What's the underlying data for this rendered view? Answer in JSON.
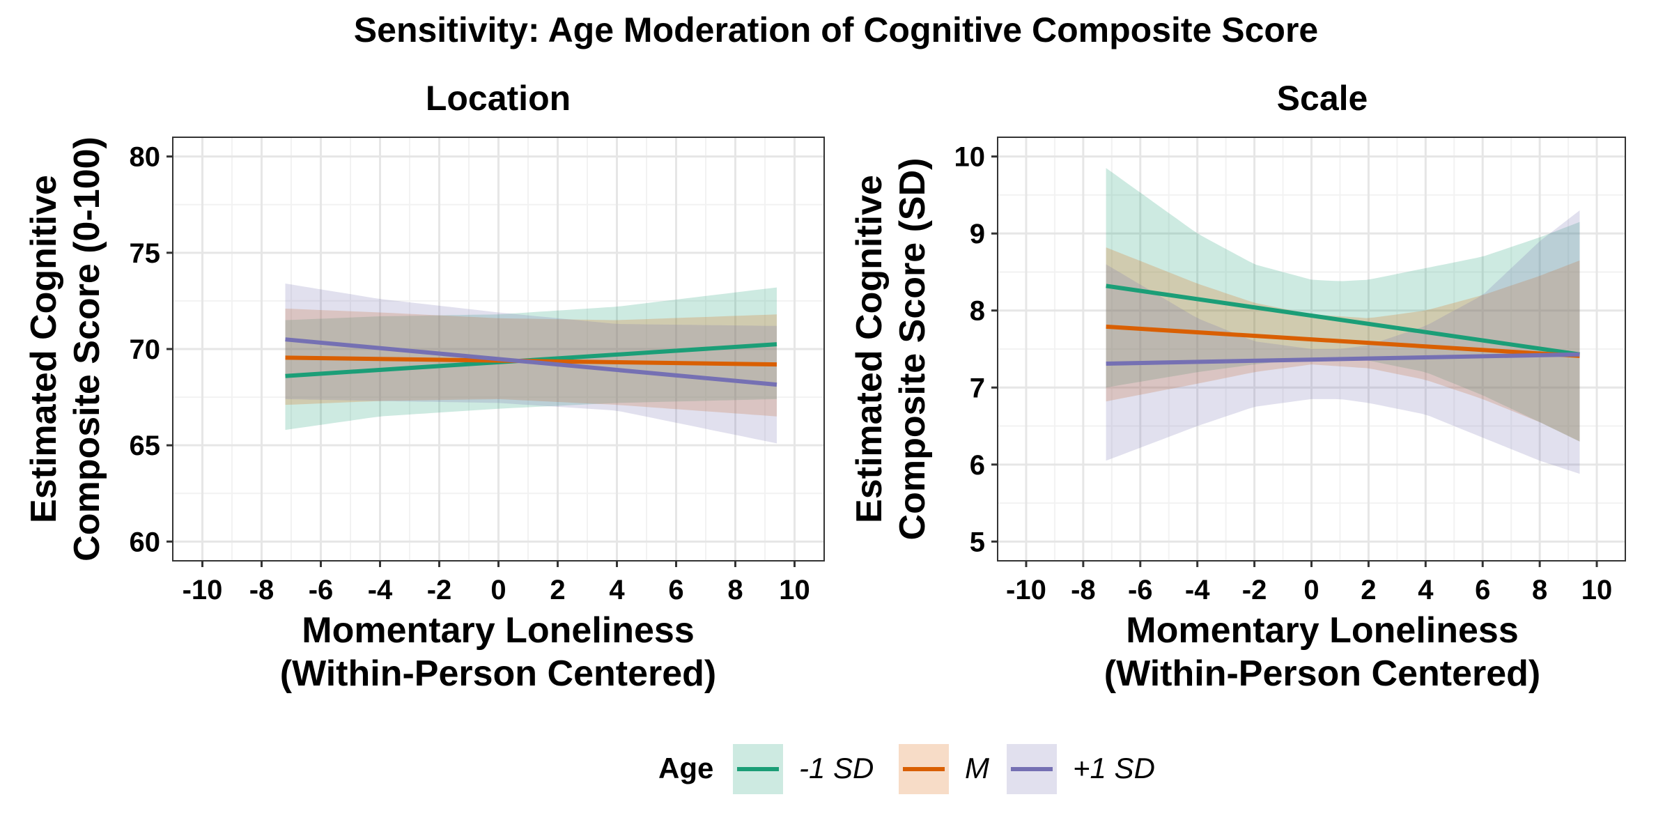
{
  "title": "Sensitivity: Age Moderation of Cognitive Composite Score",
  "legend": {
    "title": "Age",
    "entries": [
      {
        "label": "-1 SD",
        "color": "#1b9e77"
      },
      {
        "label": "M",
        "color": "#d95f02"
      },
      {
        "label": "+1 SD",
        "color": "#7570b3"
      }
    ]
  },
  "chart_data": [
    {
      "type": "line",
      "title": "Location",
      "xlabel": "Momentary Loneliness\n(Within-Person Centered)",
      "ylabel": "Estimated Cognitive\nComposite Score (0-100)",
      "xlim": [
        -11,
        11
      ],
      "ylim": [
        59,
        81
      ],
      "xticks": [
        -10,
        -8,
        -6,
        -4,
        -2,
        0,
        2,
        4,
        6,
        8,
        10
      ],
      "yticks": [
        60,
        65,
        70,
        75,
        80
      ],
      "grid": true,
      "series": [
        {
          "name": "-1 SD",
          "color": "#1b9e77",
          "x": [
            -7.2,
            9.4
          ],
          "y": [
            68.6,
            70.25
          ],
          "band": {
            "x": [
              -7.2,
              -4,
              0,
              4,
              9.4
            ],
            "lower": [
              65.8,
              66.5,
              66.9,
              67.2,
              67.4
            ],
            "upper": [
              71.5,
              71.7,
              71.8,
              72.2,
              73.2
            ]
          }
        },
        {
          "name": "M",
          "color": "#d95f02",
          "x": [
            -7.2,
            9.4
          ],
          "y": [
            69.55,
            69.2
          ],
          "band": {
            "x": [
              -7.2,
              -4,
              0,
              4,
              9.4
            ],
            "lower": [
              67.1,
              67.3,
              67.4,
              67.1,
              66.5
            ],
            "upper": [
              72.1,
              71.9,
              71.6,
              71.5,
              71.8
            ]
          }
        },
        {
          "name": "+1 SD",
          "color": "#7570b3",
          "x": [
            -7.2,
            9.4
          ],
          "y": [
            70.5,
            68.15
          ],
          "band": {
            "x": [
              -7.2,
              -4,
              0,
              4,
              9.4
            ],
            "lower": [
              67.4,
              67.3,
              67.2,
              66.8,
              65.1
            ],
            "upper": [
              73.4,
              72.6,
              71.9,
              71.3,
              71.2
            ]
          }
        }
      ]
    },
    {
      "type": "line",
      "title": "Scale",
      "xlabel": "Momentary Loneliness\n(Within-Person Centered)",
      "ylabel": "Estimated Cognitive\nComposite Score (SD)",
      "xlim": [
        -11,
        11
      ],
      "ylim": [
        4.75,
        10.25
      ],
      "xticks": [
        -10,
        -8,
        -6,
        -4,
        -2,
        0,
        2,
        4,
        6,
        8,
        10
      ],
      "yticks": [
        5,
        6,
        7,
        8,
        9,
        10
      ],
      "grid": true,
      "series": [
        {
          "name": "-1 SD",
          "color": "#1b9e77",
          "x": [
            -7.2,
            9.4
          ],
          "y": [
            8.32,
            7.43
          ],
          "band": {
            "x": [
              -7.2,
              -4,
              -2,
              0,
              1,
              2,
              4,
              6,
              8,
              9.4
            ],
            "lower": [
              7.0,
              7.2,
              7.3,
              7.38,
              7.4,
              7.35,
              7.2,
              6.9,
              6.55,
              6.3
            ],
            "upper": [
              9.85,
              9.0,
              8.6,
              8.4,
              8.38,
              8.4,
              8.55,
              8.7,
              8.95,
              9.15
            ]
          }
        },
        {
          "name": "M",
          "color": "#d95f02",
          "x": [
            -7.2,
            9.4
          ],
          "y": [
            7.79,
            7.41
          ],
          "band": {
            "x": [
              -7.2,
              -4,
              -2,
              0,
              2,
              4,
              6,
              8,
              9.4
            ],
            "lower": [
              6.82,
              7.05,
              7.2,
              7.3,
              7.25,
              7.1,
              6.85,
              6.55,
              6.3
            ],
            "upper": [
              8.82,
              8.35,
              8.1,
              7.95,
              7.9,
              8.0,
              8.2,
              8.45,
              8.65
            ]
          }
        },
        {
          "name": "+1 SD",
          "color": "#7570b3",
          "x": [
            -7.2,
            9.4
          ],
          "y": [
            7.31,
            7.43
          ],
          "band": {
            "x": [
              -7.2,
              -4,
              -2,
              0,
              1,
              2,
              4,
              6,
              8,
              9.4
            ],
            "lower": [
              6.05,
              6.5,
              6.75,
              6.85,
              6.85,
              6.8,
              6.65,
              6.35,
              6.05,
              5.88
            ],
            "upper": [
              8.6,
              7.9,
              7.6,
              7.5,
              7.5,
              7.55,
              7.8,
              8.2,
              8.9,
              9.3
            ]
          }
        }
      ]
    }
  ]
}
